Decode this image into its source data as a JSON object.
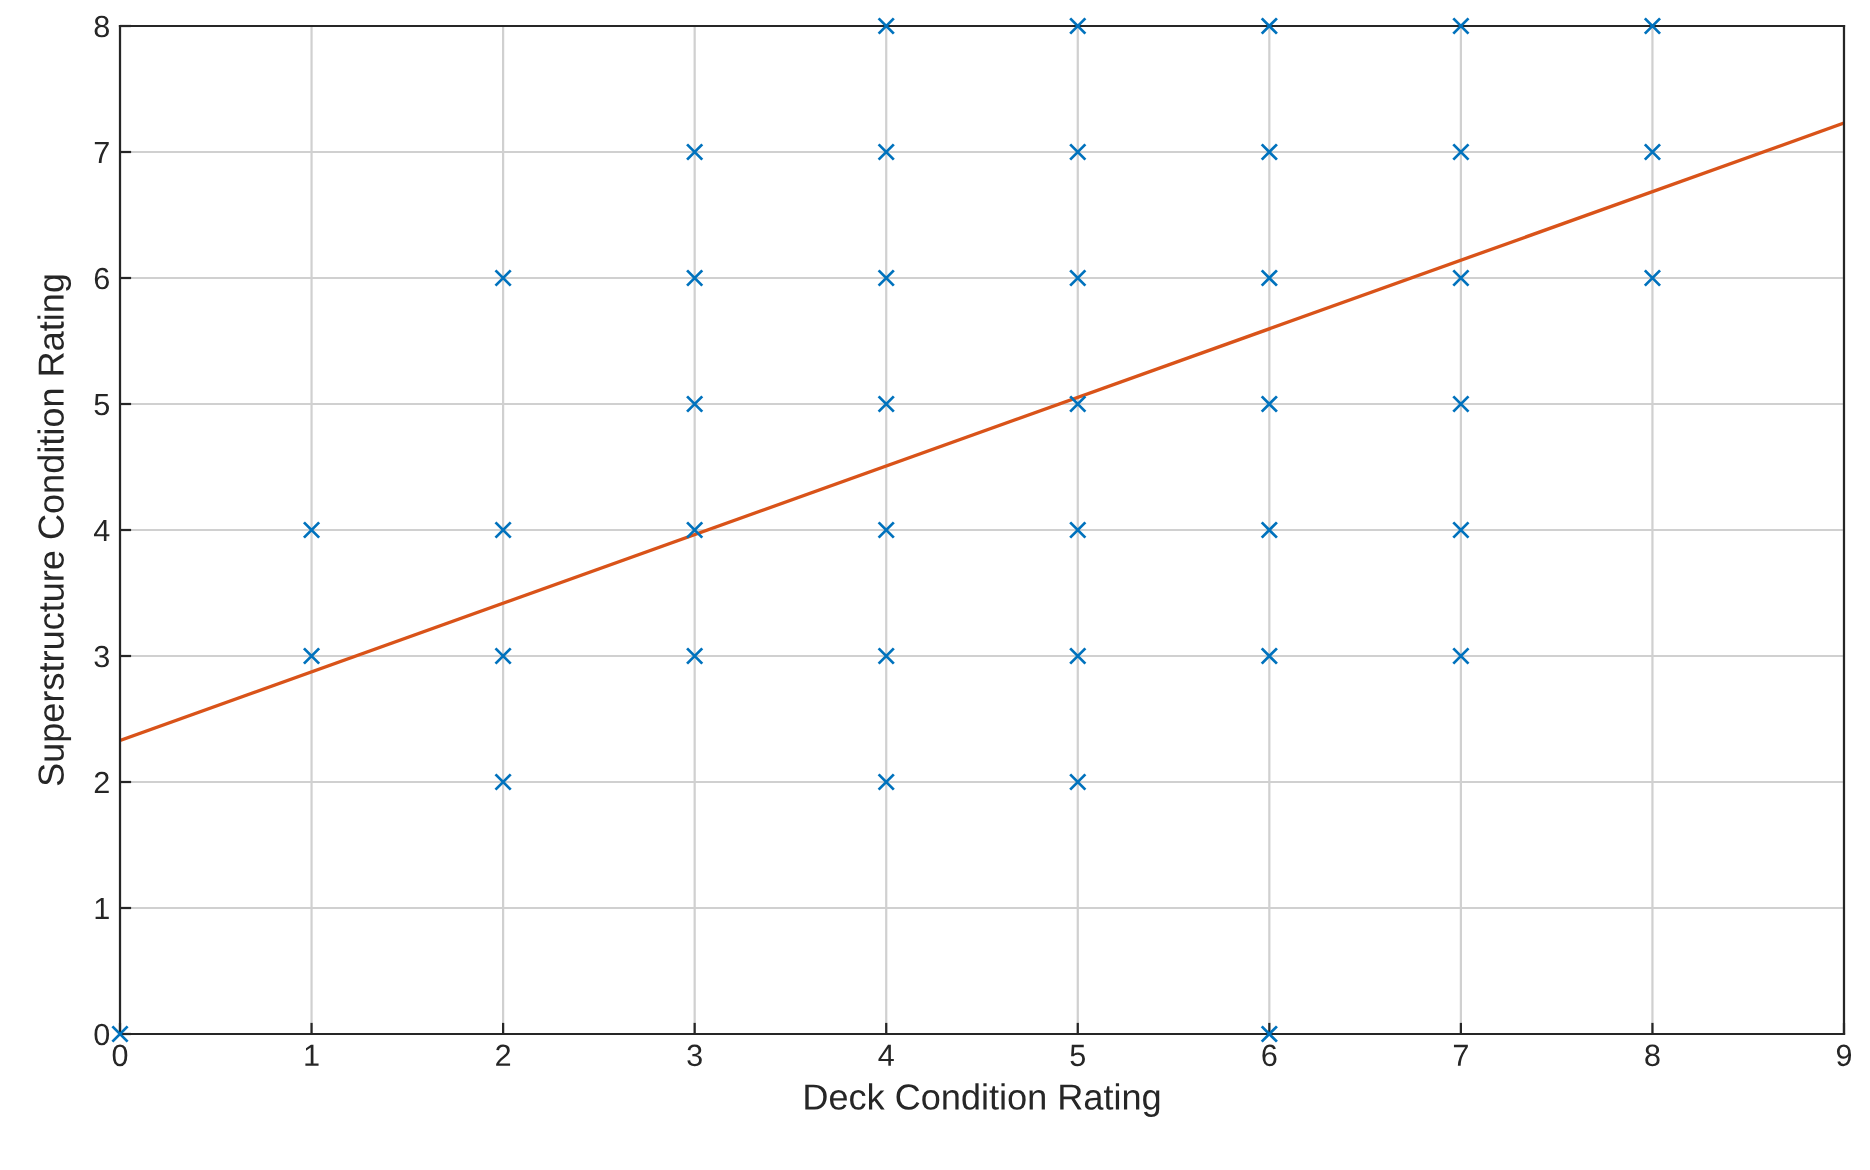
{
  "chart_data": {
    "type": "scatter",
    "xlabel": "Deck Condition Rating",
    "ylabel": "Superstructure Condition Rating",
    "xlim": [
      0,
      9
    ],
    "ylim": [
      0,
      8
    ],
    "xticks": [
      0,
      1,
      2,
      3,
      4,
      5,
      6,
      7,
      8,
      9
    ],
    "yticks": [
      0,
      1,
      2,
      3,
      4,
      5,
      6,
      7,
      8
    ],
    "grid": true,
    "series": [
      {
        "marker": "cross",
        "color": "#0072bd",
        "x": [
          0,
          1,
          1,
          2,
          2,
          2,
          2,
          3,
          3,
          3,
          3,
          3,
          4,
          4,
          4,
          4,
          4,
          4,
          4,
          5,
          5,
          5,
          5,
          5,
          5,
          5,
          6,
          6,
          6,
          6,
          6,
          6,
          6,
          7,
          7,
          7,
          7,
          7,
          7,
          8,
          8,
          8
        ],
        "values": [
          0,
          3,
          4,
          2,
          3,
          4,
          6,
          3,
          4,
          5,
          6,
          7,
          2,
          3,
          4,
          5,
          6,
          7,
          8,
          2,
          3,
          4,
          5,
          6,
          7,
          8,
          0,
          3,
          4,
          5,
          6,
          7,
          8,
          3,
          4,
          5,
          6,
          7,
          8,
          6,
          7,
          8
        ]
      },
      {
        "type": "line",
        "color": "#d95319",
        "x": [
          0,
          9
        ],
        "values": [
          2.33,
          7.23
        ]
      }
    ]
  }
}
